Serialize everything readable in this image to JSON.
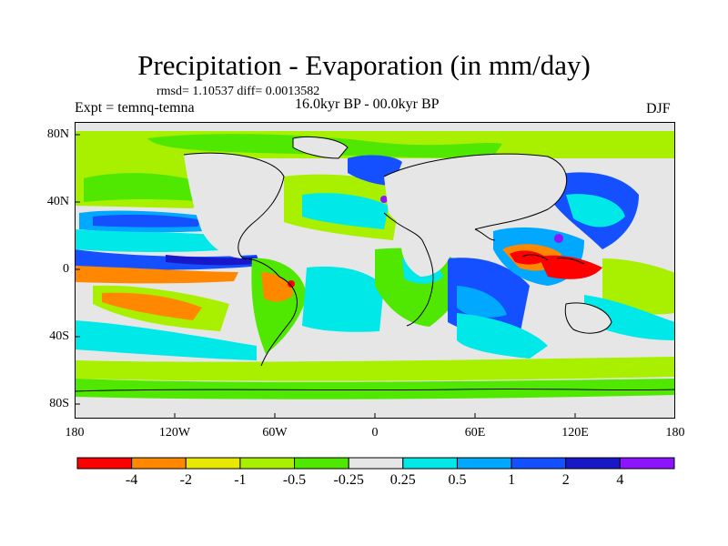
{
  "title": "Precipitation - Evaporation (in mm/day)",
  "stats_line": "rmsd= 1.10537  diff= 0.0013582",
  "experiment": "Expt = temnq-temna",
  "period": "16.0kyr BP - 00.0kyr BP",
  "season": "DJF",
  "lat_labels": [
    "80N",
    "40N",
    "0",
    "40S",
    "80S"
  ],
  "lon_labels": [
    "180",
    "120W",
    "60W",
    "0",
    "60E",
    "120E",
    "180"
  ],
  "colorbar": {
    "labels": [
      "-4",
      "-2",
      "-1",
      "-0.5",
      "-0.25",
      "0.25",
      "0.5",
      "1",
      "2",
      "4"
    ],
    "colors": [
      "#ff0000",
      "#ff8800",
      "#e8e800",
      "#a8f000",
      "#50e800",
      "#e6e6e6",
      "#00e8e8",
      "#00a8ff",
      "#1450ff",
      "#1818c8",
      "#8c14ff"
    ]
  }
}
